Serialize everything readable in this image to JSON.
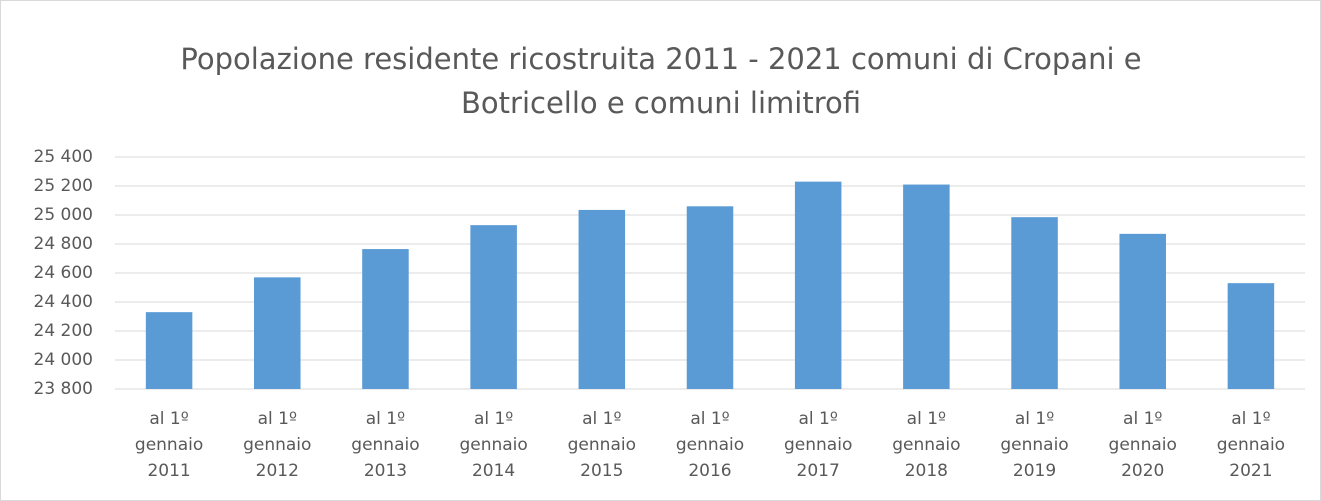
{
  "chart_data": {
    "type": "bar",
    "title": "Popolazione residente ricostruita 2011 - 2021  comuni di Cropani e Botricello e comuni limitrofi",
    "categories": [
      "al 1º gennaio 2011",
      "al 1º gennaio 2012",
      "al 1º gennaio 2013",
      "al 1º gennaio 2014",
      "al 1º gennaio 2015",
      "al 1º gennaio 2016",
      "al 1º gennaio 2017",
      "al 1º gennaio 2018",
      "al 1º gennaio 2019",
      "al 1º gennaio 2020",
      "al 1º gennaio 2021"
    ],
    "values": [
      24330,
      24570,
      24765,
      24930,
      25035,
      25060,
      25230,
      25210,
      24985,
      24870,
      24530
    ],
    "color": "#5b9bd5",
    "ylim": [
      23800,
      25400
    ],
    "yticks": [
      {
        "value": 23800,
        "label": "23 800"
      },
      {
        "value": 24000,
        "label": "24 000"
      },
      {
        "value": 24200,
        "label": "24 200"
      },
      {
        "value": 24400,
        "label": "24 400"
      },
      {
        "value": 24600,
        "label": "24 600"
      },
      {
        "value": 24800,
        "label": "24 800"
      },
      {
        "value": 25000,
        "label": "25 000"
      },
      {
        "value": 25200,
        "label": "25 200"
      },
      {
        "value": 25400,
        "label": "25 400"
      }
    ],
    "grid": true
  }
}
